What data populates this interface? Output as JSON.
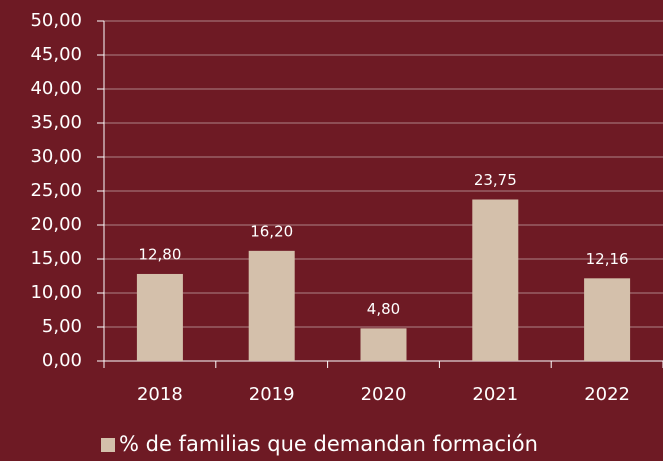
{
  "chart_data": {
    "type": "bar",
    "categories": [
      "2018",
      "2019",
      "2020",
      "2021",
      "2022"
    ],
    "series": [
      {
        "name": "% de familias que demandan formación",
        "color": "#d4c0ab",
        "values": [
          12.8,
          16.2,
          4.8,
          23.75,
          12.16
        ],
        "value_labels": [
          "12,80",
          "16,20",
          "4,80",
          "23,75",
          "12,16"
        ]
      }
    ],
    "ylim": [
      0,
      50
    ],
    "yticks": [
      {
        "value": 0,
        "label": "0,00"
      },
      {
        "value": 5,
        "label": "5,00"
      },
      {
        "value": 10,
        "label": "10,00"
      },
      {
        "value": 15,
        "label": "15,00"
      },
      {
        "value": 20,
        "label": "20,00"
      },
      {
        "value": 25,
        "label": "25,00"
      },
      {
        "value": 30,
        "label": "30,00"
      },
      {
        "value": 35,
        "label": "35,00"
      },
      {
        "value": 40,
        "label": "40,00"
      },
      {
        "value": 45,
        "label": "45,00"
      },
      {
        "value": 50,
        "label": "50,00"
      }
    ],
    "grid": true,
    "legend": "bottom"
  }
}
